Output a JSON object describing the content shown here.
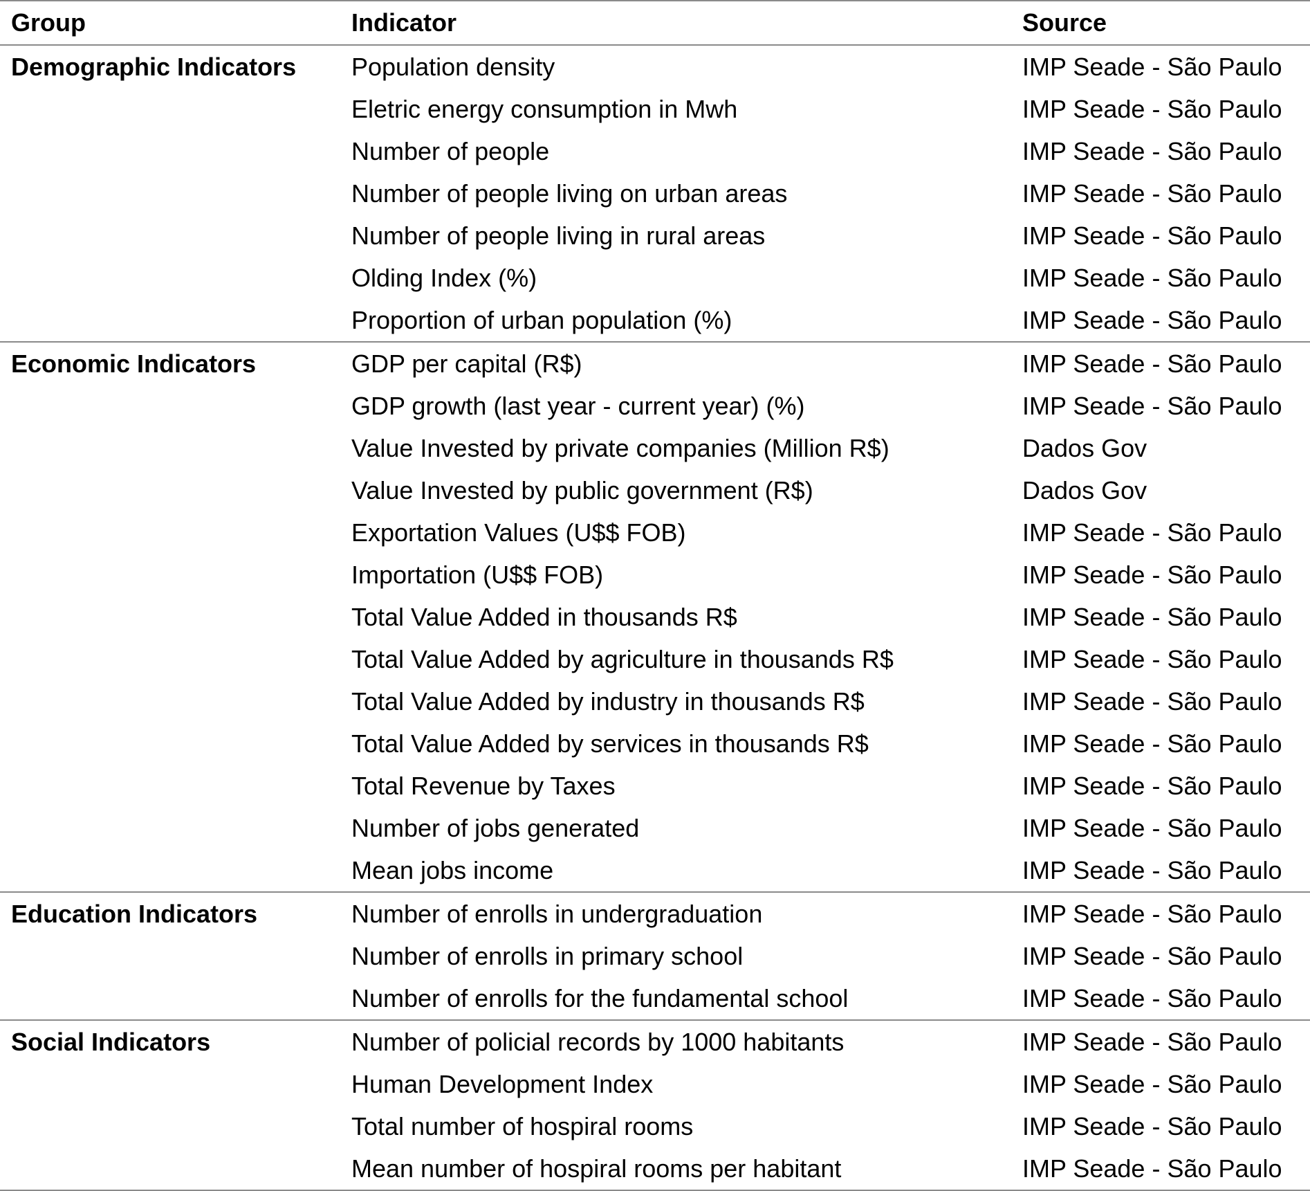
{
  "headers": {
    "group": "Group",
    "indicator": "Indicator",
    "source": "Source"
  },
  "groups": [
    {
      "name": "Demographic Indicators",
      "rows": [
        {
          "indicator": "Population density",
          "source": "IMP Seade - São Paulo"
        },
        {
          "indicator": "Eletric energy consumption in Mwh",
          "source": "IMP Seade - São Paulo"
        },
        {
          "indicator": "Number of people",
          "source": "IMP Seade - São Paulo"
        },
        {
          "indicator": "Number of people living on urban areas",
          "source": "IMP Seade - São Paulo"
        },
        {
          "indicator": "Number of people living in rural areas",
          "source": "IMP Seade - São Paulo"
        },
        {
          "indicator": "Olding Index (%)",
          "source": "IMP Seade - São Paulo"
        },
        {
          "indicator": "Proportion of urban population (%)",
          "source": "IMP Seade - São Paulo"
        }
      ]
    },
    {
      "name": "Economic Indicators",
      "rows": [
        {
          "indicator": "GDP per capital  (R$)",
          "source": "IMP Seade - São Paulo"
        },
        {
          "indicator": "GDP growth (last year - current year)  (%)",
          "source": "IMP Seade - São Paulo"
        },
        {
          "indicator": "Value Invested by private companies (Million R$)",
          "source": "Dados Gov"
        },
        {
          "indicator": "Value Invested by public government (R$)",
          "source": "Dados Gov"
        },
        {
          "indicator": "Exportation Values (U$$ FOB)",
          "source": "IMP Seade - São Paulo"
        },
        {
          "indicator": "Importation (U$$ FOB)",
          "source": "IMP Seade - São Paulo"
        },
        {
          "indicator": "Total Value Added in thousands R$",
          "source": "IMP Seade - São Paulo"
        },
        {
          "indicator": "Total Value Added by agriculture in thousands R$",
          "source": "IMP Seade - São Paulo"
        },
        {
          "indicator": "Total Value Added by industry in thousands R$",
          "source": "IMP Seade - São Paulo"
        },
        {
          "indicator": "Total Value Added by services in thousands R$",
          "source": "IMP Seade - São Paulo"
        },
        {
          "indicator": "Total Revenue by Taxes",
          "source": "IMP Seade - São Paulo"
        },
        {
          "indicator": "Number of jobs generated",
          "source": "IMP Seade - São Paulo"
        },
        {
          "indicator": "Mean jobs income",
          "source": "IMP Seade - São Paulo"
        }
      ]
    },
    {
      "name": "Education Indicators",
      "rows": [
        {
          "indicator": "Number of enrolls in undergraduation",
          "source": "IMP Seade - São Paulo"
        },
        {
          "indicator": "Number of enrolls in primary school",
          "source": "IMP Seade - São Paulo"
        },
        {
          "indicator": "Number of enrolls for the fundamental school",
          "source": "IMP Seade - São Paulo"
        }
      ]
    },
    {
      "name": "Social Indicators",
      "rows": [
        {
          "indicator": "Number of policial records by 1000 habitants",
          "source": "IMP Seade - São Paulo"
        },
        {
          "indicator": "Human Development Index",
          "source": "IMP Seade - São Paulo"
        },
        {
          "indicator": "Total number of hospiral rooms",
          "source": "IMP Seade - São Paulo"
        },
        {
          "indicator": "Mean number of hospiral rooms per habitant",
          "source": "IMP Seade - São Paulo"
        }
      ]
    }
  ]
}
